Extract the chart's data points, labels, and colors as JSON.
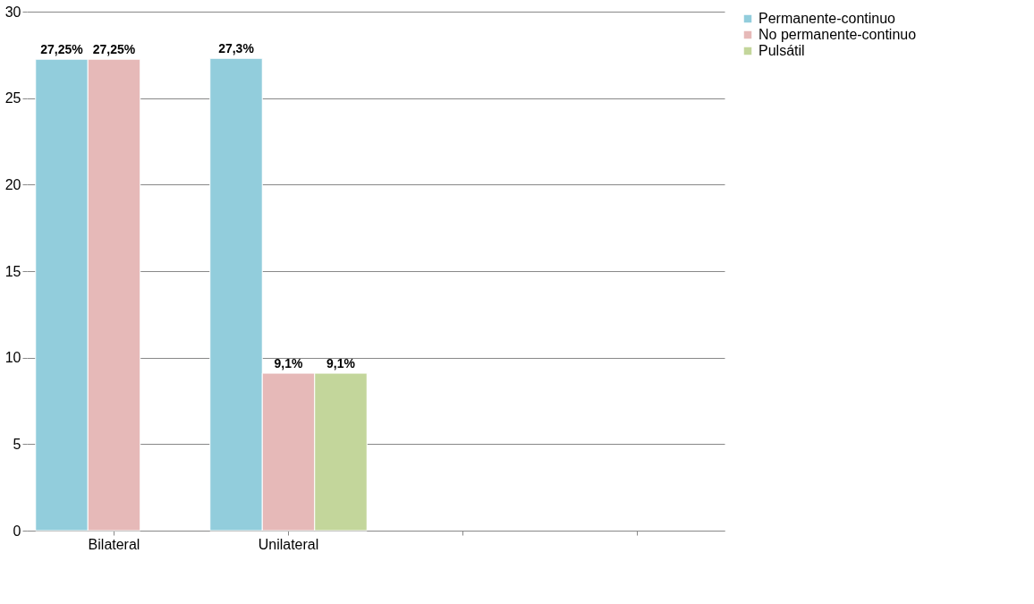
{
  "chart_data": {
    "type": "bar",
    "categories": [
      "Bilateral",
      "Unilateral",
      null,
      null
    ],
    "series": [
      {
        "name": "Permanente-continuo",
        "color": "#92cddc",
        "values": [
          27.25,
          27.3,
          null,
          null
        ],
        "value_labels": [
          "27,25%",
          "27,3%",
          null,
          null
        ]
      },
      {
        "name": "No permanente-continuo",
        "color": "#e6b9b8",
        "values": [
          27.25,
          9.1,
          null,
          null
        ],
        "value_labels": [
          "27,25%",
          "9,1%",
          null,
          null
        ]
      },
      {
        "name": "Pulsátil",
        "color": "#c3d69b",
        "values": [
          null,
          9.1,
          null,
          null
        ],
        "value_labels": [
          null,
          "9,1%",
          null,
          null
        ]
      }
    ],
    "ylim": [
      0,
      30
    ],
    "yticks": [
      0,
      5,
      10,
      15,
      20,
      25,
      30
    ],
    "grid": "y",
    "legend": "right"
  }
}
